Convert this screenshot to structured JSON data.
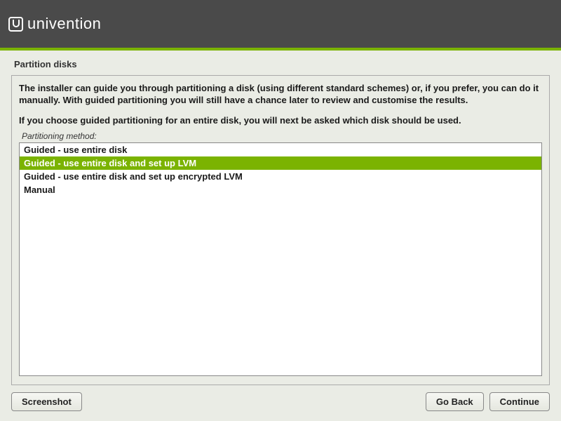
{
  "brand": {
    "name": "univention"
  },
  "accent_color": "#7bb301",
  "header_bg": "#4a4a4a",
  "page": {
    "title": "Partition disks",
    "intro_line1": "The installer can guide you through partitioning a disk (using different standard schemes) or, if you prefer, you can do it manually. With guided partitioning you will still have a chance later to review and customise the results.",
    "intro_line2": "If you choose guided partitioning for an entire disk, you will next be asked which disk should be used.",
    "method_label": "Partitioning method:",
    "options": [
      {
        "label": "Guided - use entire disk",
        "selected": false
      },
      {
        "label": "Guided - use entire disk and set up LVM",
        "selected": true
      },
      {
        "label": "Guided - use entire disk and set up encrypted LVM",
        "selected": false
      },
      {
        "label": "Manual",
        "selected": false
      }
    ]
  },
  "buttons": {
    "screenshot": "Screenshot",
    "go_back": "Go Back",
    "continue": "Continue"
  }
}
